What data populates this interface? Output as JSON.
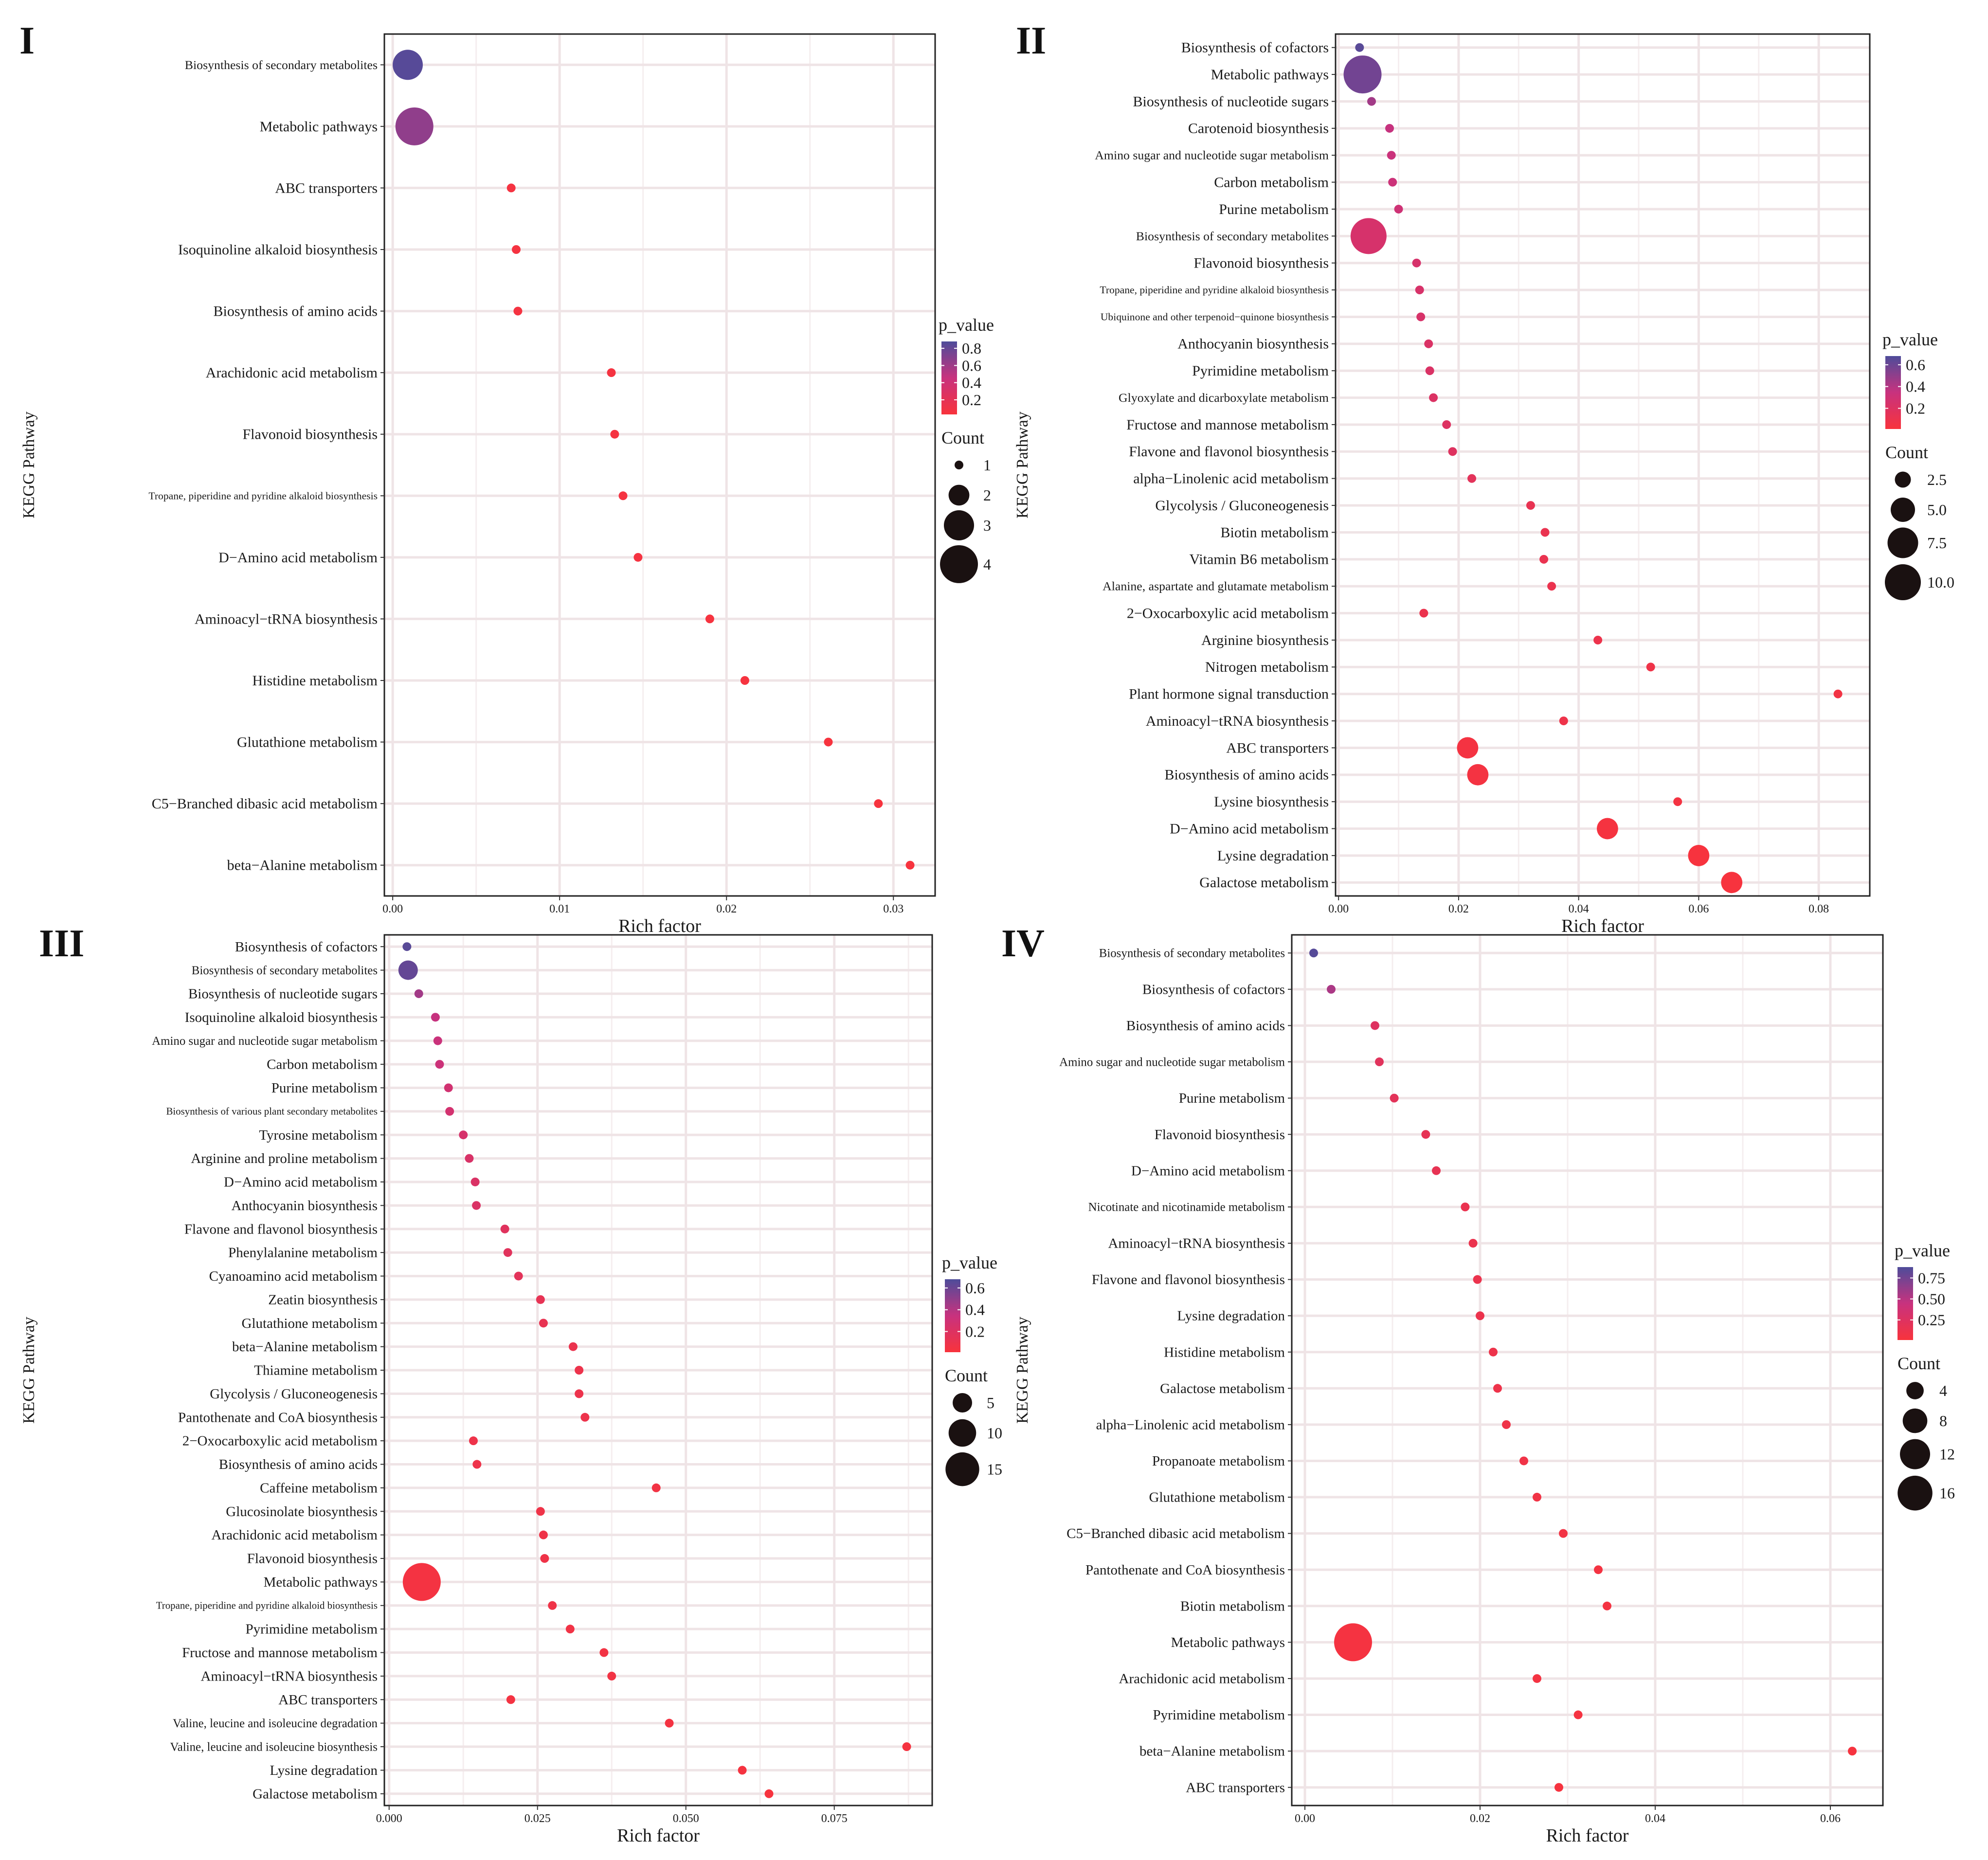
{
  "colors": {
    "low_p": "#F8333C",
    "mid_p": "#C8327E",
    "high_p": "#4E4C9A",
    "grid_bg": "#ffffff",
    "grid_line": "#EFE4E6"
  },
  "common": {
    "ylabel": "KEGG Pathway",
    "xlabel": "Rich factor",
    "legend_color_title": "p_value",
    "legend_size_title": "Count"
  },
  "chart_data": [
    {
      "panel": "I",
      "type": "scatter",
      "xlabel": "Rich factor",
      "ylabel": "KEGG Pathway",
      "xlim": [
        -0.0005,
        0.0325
      ],
      "xticks": [
        0.0,
        0.01,
        0.02,
        0.03
      ],
      "xtick_labels": [
        "0.00",
        "0.01",
        "0.02",
        "0.03"
      ],
      "p_range": [
        0.03,
        0.88
      ],
      "count_range": [
        1,
        4
      ],
      "legend_p": [
        {
          "value": 0.8,
          "label": "0.8"
        },
        {
          "value": 0.6,
          "label": "0.6"
        },
        {
          "value": 0.4,
          "label": "0.4"
        },
        {
          "value": 0.2,
          "label": "0.2"
        }
      ],
      "legend_count": [
        {
          "value": 1,
          "label": "1"
        },
        {
          "value": 2,
          "label": "2"
        },
        {
          "value": 3,
          "label": "3"
        },
        {
          "value": 4,
          "label": "4"
        }
      ],
      "pathways": [
        "Biosynthesis of secondary metabolites",
        "Metabolic pathways",
        "ABC transporters",
        "Isoquinoline alkaloid biosynthesis",
        "Biosynthesis of amino acids",
        "Arachidonic acid metabolism",
        "Flavonoid biosynthesis",
        "Tropane, piperidine and pyridine alkaloid biosynthesis",
        "D−Amino acid metabolism",
        "Aminoacyl−tRNA biosynthesis",
        "Histidine metabolism",
        "Glutathione metabolism",
        "C5−Branched dibasic acid metabolism",
        "beta−Alanine metabolism"
      ],
      "rich_factor": [
        0.0009,
        0.0013,
        0.0071,
        0.0074,
        0.0075,
        0.0131,
        0.0133,
        0.0138,
        0.0147,
        0.019,
        0.0211,
        0.0261,
        0.0291,
        0.031
      ],
      "p_value": [
        0.85,
        0.65,
        0.06,
        0.06,
        0.06,
        0.06,
        0.06,
        0.06,
        0.06,
        0.05,
        0.05,
        0.04,
        0.04,
        0.04
      ],
      "count": [
        3,
        4,
        1,
        1,
        1,
        1,
        1,
        1,
        1,
        1,
        1,
        1,
        1,
        1
      ]
    },
    {
      "panel": "II",
      "type": "scatter",
      "xlabel": "Rich factor",
      "ylabel": "KEGG Pathway",
      "xlim": [
        -0.0005,
        0.0885
      ],
      "xticks": [
        0.0,
        0.02,
        0.04,
        0.06,
        0.08
      ],
      "xtick_labels": [
        "0.00",
        "0.02",
        "0.04",
        "0.06",
        "0.08"
      ],
      "p_range": [
        0.01,
        0.68
      ],
      "count_range": [
        1,
        11
      ],
      "legend_p": [
        {
          "value": 0.6,
          "label": "0.6"
        },
        {
          "value": 0.4,
          "label": "0.4"
        },
        {
          "value": 0.2,
          "label": "0.2"
        }
      ],
      "legend_count": [
        {
          "value": 2.5,
          "label": "2.5"
        },
        {
          "value": 5.0,
          "label": "5.0"
        },
        {
          "value": 7.5,
          "label": "7.5"
        },
        {
          "value": 10.0,
          "label": "10.0"
        }
      ],
      "pathways": [
        "Biosynthesis of cofactors",
        "Metabolic pathways",
        "Biosynthesis of nucleotide sugars",
        "Carotenoid biosynthesis",
        "Amino sugar and nucleotide sugar metabolism",
        "Carbon metabolism",
        "Purine metabolism",
        "Biosynthesis of secondary metabolites",
        "Flavonoid biosynthesis",
        "Tropane, piperidine and pyridine alkaloid biosynthesis",
        "Ubiquinone and other terpenoid−quinone biosynthesis",
        "Anthocyanin biosynthesis",
        "Pyrimidine metabolism",
        "Glyoxylate and dicarboxylate metabolism",
        "Fructose and mannose metabolism",
        "Flavone and flavonol biosynthesis",
        "alpha−Linolenic acid metabolism",
        "Glycolysis / Gluconeogenesis",
        "Biotin metabolism",
        "Vitamin B6 metabolism",
        "Alanine, aspartate and glutamate metabolism",
        "2−Oxocarboxylic acid metabolism",
        "Arginine biosynthesis",
        "Nitrogen metabolism",
        "Plant hormone signal transduction",
        "Aminoacyl−tRNA biosynthesis",
        "ABC transporters",
        "Biosynthesis of amino acids",
        "Lysine biosynthesis",
        "D−Amino acid metabolism",
        "Lysine degradation",
        "Galactose metabolism"
      ],
      "rich_factor": [
        0.0035,
        0.004,
        0.0055,
        0.0085,
        0.0088,
        0.009,
        0.01,
        0.005,
        0.013,
        0.0135,
        0.0137,
        0.015,
        0.0152,
        0.0158,
        0.018,
        0.019,
        0.0222,
        0.032,
        0.0344,
        0.0342,
        0.0355,
        0.0142,
        0.0432,
        0.052,
        0.0832,
        0.0375,
        0.0215,
        0.0232,
        0.0565,
        0.0448,
        0.06,
        0.0655
      ],
      "p_value": [
        0.65,
        0.58,
        0.45,
        0.35,
        0.33,
        0.32,
        0.3,
        0.25,
        0.25,
        0.24,
        0.24,
        0.22,
        0.22,
        0.21,
        0.2,
        0.19,
        0.16,
        0.12,
        0.11,
        0.11,
        0.1,
        0.1,
        0.09,
        0.07,
        0.05,
        0.08,
        0.04,
        0.04,
        0.04,
        0.03,
        0.02,
        0.02
      ],
      "count": [
        1,
        11,
        1,
        1,
        1,
        1,
        1,
        10,
        1,
        1,
        1,
        1,
        1,
        1,
        1,
        1,
        1,
        1,
        1,
        1,
        1,
        1,
        1,
        1,
        1,
        1,
        4,
        4,
        1,
        4,
        4,
        4
      ]
    },
    {
      "panel": "III",
      "type": "scatter",
      "xlabel": "Rich factor",
      "ylabel": "KEGG Pathway",
      "xlim": [
        -0.0008,
        0.0915
      ],
      "xticks": [
        0.0,
        0.025,
        0.05,
        0.075
      ],
      "xtick_labels": [
        "0.000",
        "0.025",
        "0.050",
        "0.075"
      ],
      "p_range": [
        0.01,
        0.68
      ],
      "count_range": [
        1,
        19
      ],
      "legend_p": [
        {
          "value": 0.6,
          "label": "0.6"
        },
        {
          "value": 0.4,
          "label": "0.4"
        },
        {
          "value": 0.2,
          "label": "0.2"
        }
      ],
      "legend_count": [
        {
          "value": 5,
          "label": "5"
        },
        {
          "value": 10,
          "label": "10"
        },
        {
          "value": 15,
          "label": "15"
        }
      ],
      "pathways": [
        "Biosynthesis of cofactors",
        "Biosynthesis of secondary metabolites",
        "Biosynthesis of nucleotide sugars",
        "Isoquinoline alkaloid biosynthesis",
        "Amino sugar and nucleotide sugar metabolism",
        "Carbon metabolism",
        "Purine metabolism",
        "Biosynthesis of various plant secondary metabolites",
        "Tyrosine metabolism",
        "Arginine and proline metabolism",
        "D−Amino acid metabolism",
        "Anthocyanin biosynthesis",
        "Flavone and flavonol biosynthesis",
        "Phenylalanine metabolism",
        "Cyanoamino acid metabolism",
        "Zeatin biosynthesis",
        "Glutathione metabolism",
        "beta−Alanine metabolism",
        "Thiamine metabolism",
        "Glycolysis / Gluconeogenesis",
        "Pantothenate and CoA biosynthesis",
        "2−Oxocarboxylic acid metabolism",
        "Biosynthesis of amino acids",
        "Caffeine metabolism",
        "Glucosinolate biosynthesis",
        "Arachidonic acid metabolism",
        "Flavonoid biosynthesis",
        "Metabolic pathways",
        "Tropane, piperidine and pyridine alkaloid biosynthesis",
        "Pyrimidine metabolism",
        "Fructose and mannose metabolism",
        "Aminoacyl−tRNA biosynthesis",
        "ABC transporters",
        "Valine, leucine and isoleucine degradation",
        "Valine, leucine and isoleucine biosynthesis",
        "Lysine degradation",
        "Galactose metabolism"
      ],
      "rich_factor": [
        0.003,
        0.0032,
        0.005,
        0.0078,
        0.0082,
        0.0085,
        0.01,
        0.0102,
        0.0125,
        0.0135,
        0.0145,
        0.0147,
        0.0195,
        0.02,
        0.0218,
        0.0255,
        0.026,
        0.031,
        0.032,
        0.032,
        0.033,
        0.0142,
        0.0148,
        0.045,
        0.0255,
        0.026,
        0.0262,
        0.0055,
        0.0275,
        0.0305,
        0.0362,
        0.0375,
        0.0205,
        0.0472,
        0.0872,
        0.0595,
        0.064
      ],
      "p_value": [
        0.65,
        0.62,
        0.45,
        0.35,
        0.33,
        0.32,
        0.28,
        0.27,
        0.25,
        0.23,
        0.22,
        0.22,
        0.18,
        0.17,
        0.16,
        0.13,
        0.12,
        0.1,
        0.09,
        0.09,
        0.09,
        0.08,
        0.08,
        0.05,
        0.07,
        0.07,
        0.07,
        0.04,
        0.07,
        0.06,
        0.05,
        0.05,
        0.04,
        0.04,
        0.03,
        0.03,
        0.02
      ],
      "count": [
        1,
        5,
        1,
        1,
        1,
        1,
        1,
        1,
        1,
        1,
        1,
        1,
        1,
        1,
        1,
        1,
        1,
        1,
        1,
        1,
        1,
        1,
        1,
        1,
        1,
        1,
        1,
        19,
        1,
        1,
        1,
        1,
        1,
        1,
        1,
        1,
        1
      ]
    },
    {
      "panel": "IV",
      "type": "scatter",
      "xlabel": "Rich factor",
      "ylabel": "KEGG Pathway",
      "xlim": [
        -0.0015,
        0.066
      ],
      "xticks": [
        0.0,
        0.02,
        0.04,
        0.06
      ],
      "xtick_labels": [
        "0.00",
        "0.02",
        "0.04",
        "0.06"
      ],
      "p_range": [
        0.01,
        0.88
      ],
      "count_range": [
        1,
        19
      ],
      "legend_p": [
        {
          "value": 0.75,
          "label": "0.75"
        },
        {
          "value": 0.5,
          "label": "0.50"
        },
        {
          "value": 0.25,
          "label": "0.25"
        }
      ],
      "legend_count": [
        {
          "value": 4,
          "label": "4"
        },
        {
          "value": 8,
          "label": "8"
        },
        {
          "value": 12,
          "label": "12"
        },
        {
          "value": 16,
          "label": "16"
        }
      ],
      "pathways": [
        "Biosynthesis of secondary metabolites",
        "Biosynthesis of cofactors",
        "Biosynthesis of amino acids",
        "Amino sugar and nucleotide sugar metabolism",
        "Purine metabolism",
        "Flavonoid biosynthesis",
        "D−Amino acid metabolism",
        "Nicotinate and nicotinamide metabolism",
        "Aminoacyl−tRNA biosynthesis",
        "Flavone and flavonol biosynthesis",
        "Lysine degradation",
        "Histidine metabolism",
        "Galactose metabolism",
        "alpha−Linolenic acid metabolism",
        "Propanoate metabolism",
        "Glutathione metabolism",
        "C5−Branched dibasic acid metabolism",
        "Pantothenate and CoA biosynthesis",
        "Biotin metabolism",
        "Metabolic pathways",
        "Arachidonic acid metabolism",
        "Pyrimidine metabolism",
        "beta−Alanine metabolism",
        "ABC transporters"
      ],
      "rich_factor": [
        0.001,
        0.003,
        0.008,
        0.0085,
        0.0102,
        0.0138,
        0.015,
        0.0183,
        0.0192,
        0.0197,
        0.02,
        0.0215,
        0.022,
        0.023,
        0.025,
        0.0265,
        0.0295,
        0.0335,
        0.0345,
        0.0055,
        0.0265,
        0.0312,
        0.0625,
        0.029
      ],
      "p_value": [
        0.85,
        0.55,
        0.25,
        0.22,
        0.2,
        0.17,
        0.16,
        0.14,
        0.13,
        0.12,
        0.12,
        0.11,
        0.1,
        0.09,
        0.08,
        0.07,
        0.06,
        0.05,
        0.05,
        0.04,
        0.05,
        0.04,
        0.03,
        0.03
      ],
      "count": [
        1,
        1,
        1,
        1,
        1,
        1,
        1,
        1,
        1,
        1,
        1,
        1,
        1,
        1,
        1,
        1,
        1,
        1,
        1,
        19,
        1,
        1,
        1,
        1
      ]
    }
  ]
}
